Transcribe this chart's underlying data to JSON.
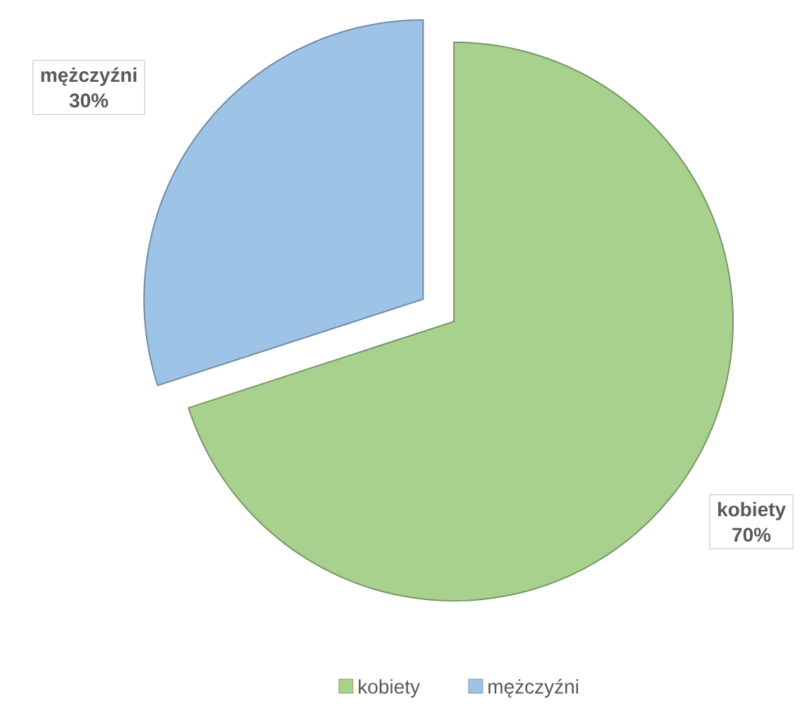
{
  "chart_data": {
    "type": "pie",
    "categories": [
      "kobiety",
      "mężczyźni"
    ],
    "values": [
      70,
      30
    ],
    "colors": [
      "#a9d18e",
      "#9dc3e6"
    ],
    "value_labels": [
      "70%",
      "30%"
    ],
    "legend": "bottom"
  }
}
